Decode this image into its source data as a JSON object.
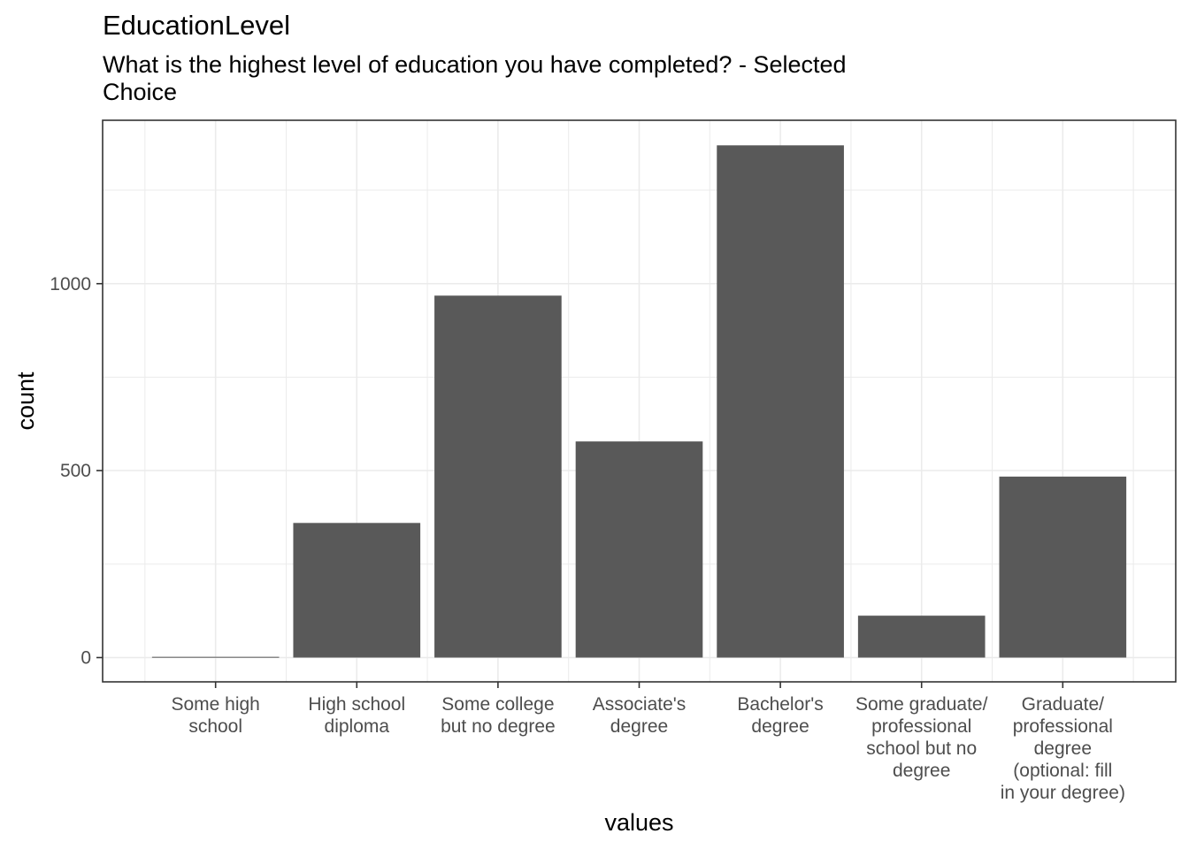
{
  "chart_data": {
    "type": "bar",
    "title": "EducationLevel",
    "subtitle": "What is the highest level of education you have completed? - Selected\nChoice",
    "xlabel": "values",
    "ylabel": "count",
    "categories": [
      [
        "Some high",
        "school"
      ],
      [
        "High school",
        "diploma"
      ],
      [
        "Some college",
        "but no degree"
      ],
      [
        "Associate's",
        "degree"
      ],
      [
        "Bachelor's",
        "degree"
      ],
      [
        "Some graduate/",
        "professional",
        "school but no",
        "degree"
      ],
      [
        "Graduate/",
        "professional",
        "degree",
        "(optional: fill",
        "in your degree)"
      ]
    ],
    "values": [
      2,
      360,
      968,
      578,
      1370,
      112,
      484
    ],
    "ylim": [
      -65,
      1437
    ],
    "yticks": [
      0,
      500,
      1000
    ],
    "yminor": [
      250,
      750,
      1250
    ],
    "grid": true,
    "bar_color": "#595959",
    "panel_border_color": "#333333",
    "grid_color": "#ebebeb"
  }
}
